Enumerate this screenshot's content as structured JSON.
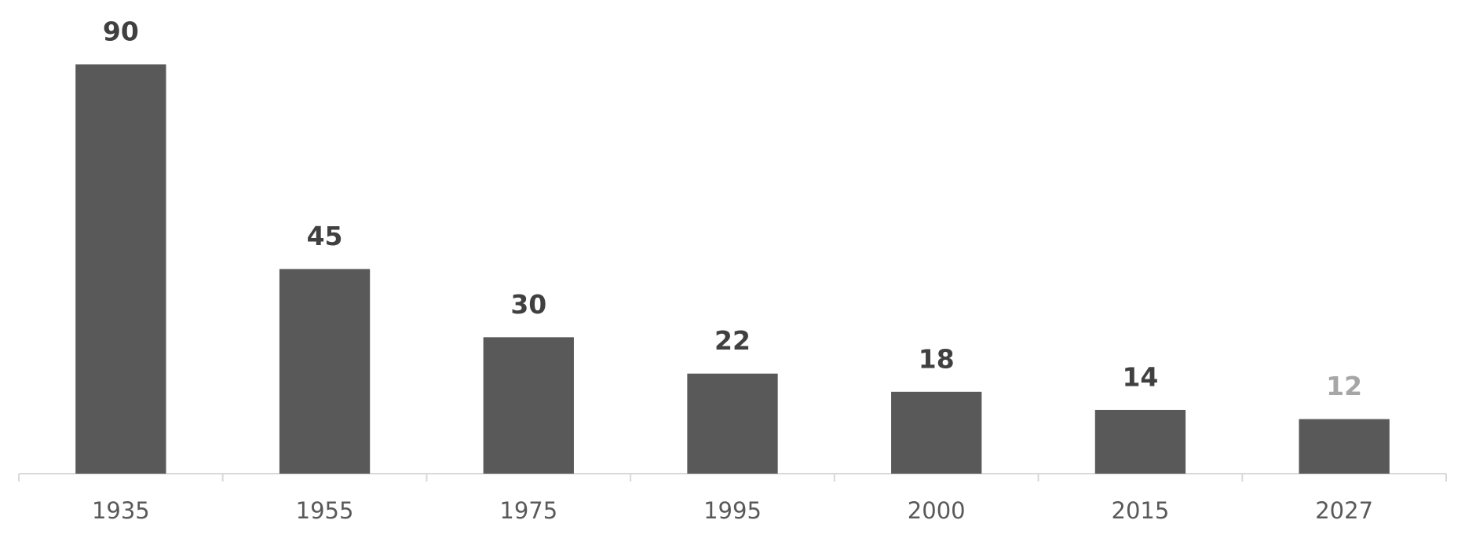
{
  "chart_data": {
    "type": "bar",
    "categories": [
      "1935",
      "1955",
      "1975",
      "1995",
      "2000",
      "2015",
      "2027"
    ],
    "values": [
      90,
      45,
      30,
      22,
      18,
      14,
      12
    ],
    "color": "#595959",
    "value_label_colors": [
      "#404040",
      "#404040",
      "#404040",
      "#404040",
      "#404040",
      "#404040",
      "#a6a6a6"
    ]
  }
}
